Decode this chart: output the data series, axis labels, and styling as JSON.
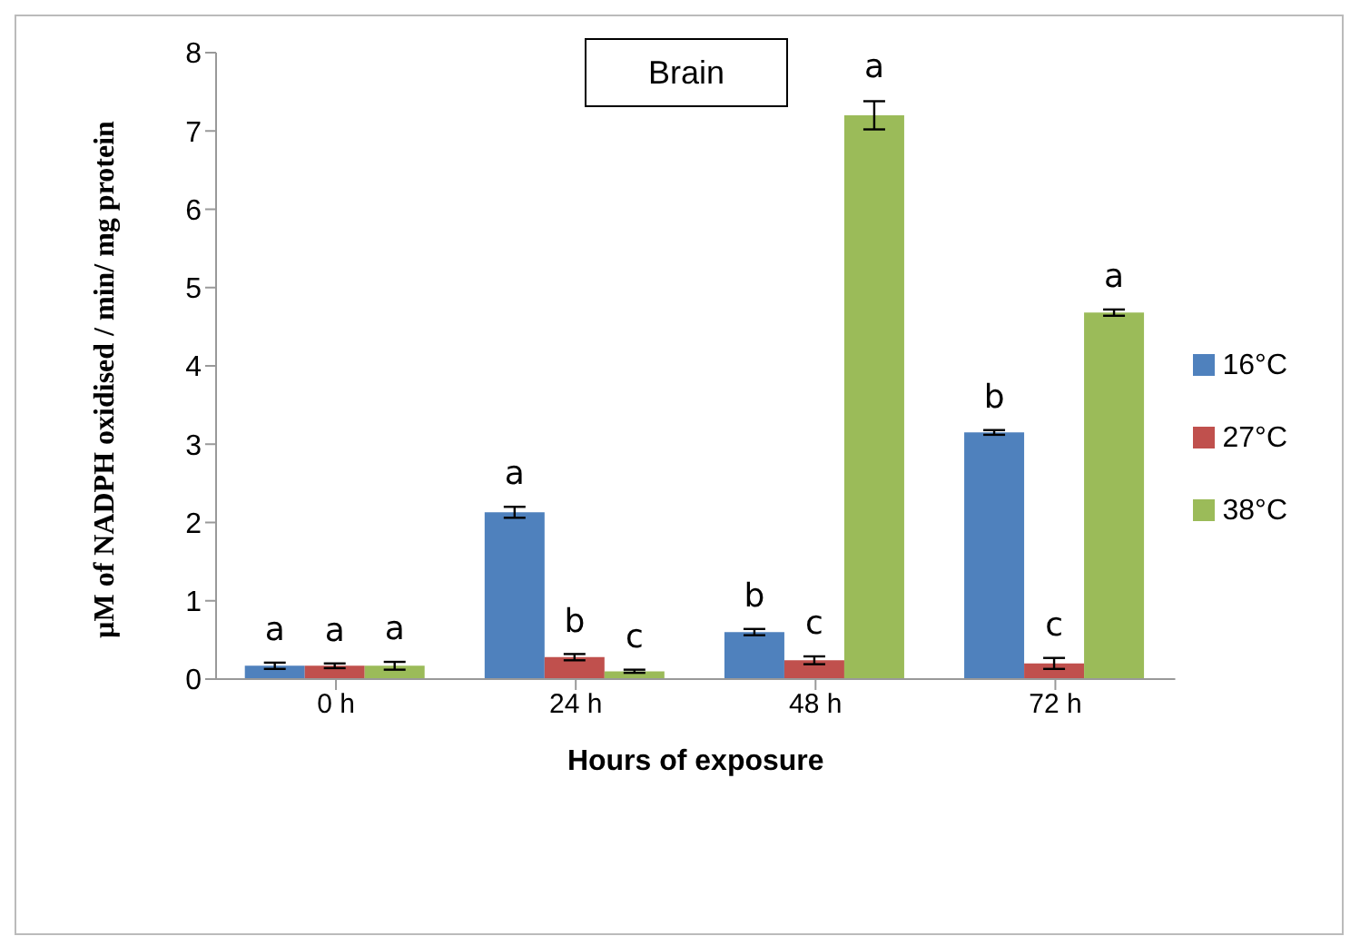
{
  "chart_data": {
    "type": "bar",
    "title": "Brain",
    "xlabel": "Hours of exposure",
    "ylabel": "µM of NADPH oxidised / min/ mg protein",
    "categories": [
      "0 h",
      "24 h",
      "48 h",
      "72 h"
    ],
    "series": [
      {
        "name": "16°C",
        "color": "#4f81bd",
        "values": [
          0.17,
          2.13,
          0.6,
          3.15
        ],
        "errors": [
          0.04,
          0.07,
          0.04,
          0.03
        ],
        "value_labels": [
          "a",
          "a",
          "b",
          "b"
        ]
      },
      {
        "name": "27°C",
        "color": "#c0504d",
        "values": [
          0.17,
          0.28,
          0.24,
          0.2
        ],
        "errors": [
          0.03,
          0.04,
          0.05,
          0.07
        ],
        "value_labels": [
          "a",
          "b",
          "c",
          "c"
        ]
      },
      {
        "name": "38°C",
        "color": "#9bbb59",
        "values": [
          0.17,
          0.1,
          7.2,
          4.68
        ],
        "errors": [
          0.05,
          0.02,
          0.18,
          0.04
        ],
        "value_labels": [
          "a",
          "c",
          "a",
          "a"
        ]
      }
    ],
    "ylim": [
      0,
      8
    ],
    "yticks": [
      0,
      1,
      2,
      3,
      4,
      5,
      6,
      7,
      8
    ],
    "grid": false,
    "legend": "right"
  }
}
